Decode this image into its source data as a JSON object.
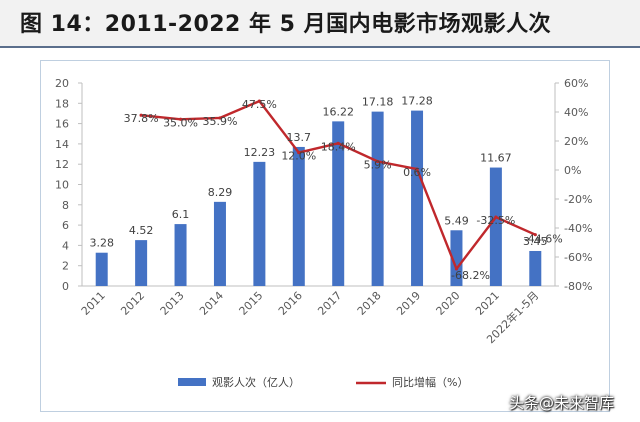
{
  "title": "图 14：2011-2022 年 5 月国内电影市场观影人次",
  "watermark": "头条@未来智库",
  "chart_data": {
    "type": "bar",
    "categories": [
      "2011",
      "2012",
      "2013",
      "2014",
      "2015",
      "2016",
      "2017",
      "2018",
      "2019",
      "2020",
      "2021",
      "2022年1-5月"
    ],
    "series": [
      {
        "name": "观影人次（亿人）",
        "kind": "bar",
        "axis": "left",
        "values": [
          3.28,
          4.52,
          6.1,
          8.29,
          12.23,
          13.7,
          16.22,
          17.18,
          17.28,
          5.49,
          11.67,
          3.45
        ],
        "labels": [
          "3.28",
          "4.52",
          "6.1",
          "8.29",
          "12.23",
          "13.7",
          "16.22",
          "17.18",
          "17.28",
          "5.49",
          "11.67",
          "3.45"
        ]
      },
      {
        "name": "同比增幅（%）",
        "kind": "line",
        "axis": "right",
        "values": [
          null,
          37.8,
          35.0,
          35.9,
          47.5,
          12.0,
          18.4,
          5.9,
          0.6,
          -68.2,
          -32.5,
          -44.6
        ],
        "labels": [
          "",
          "37.8%",
          "35.0%",
          "35.9%",
          "47.5%",
          "12.0%",
          "18.4%",
          "5.9%",
          "0.6%",
          "-68.2%",
          "-32.5%",
          "-44.6%"
        ]
      }
    ],
    "ylim": [
      0,
      20
    ],
    "y_ticks": [
      "0",
      "2",
      "4",
      "6",
      "8",
      "10",
      "12",
      "14",
      "16",
      "18",
      "20"
    ],
    "y2lim": [
      -80,
      60
    ],
    "y2_ticks": [
      "-80%",
      "-60%",
      "-40%",
      "-20%",
      "0%",
      "20%",
      "40%",
      "60%"
    ],
    "legend_position": "bottom",
    "grid": false,
    "colors": {
      "bar": "#4472c4",
      "line": "#c0282c"
    }
  }
}
